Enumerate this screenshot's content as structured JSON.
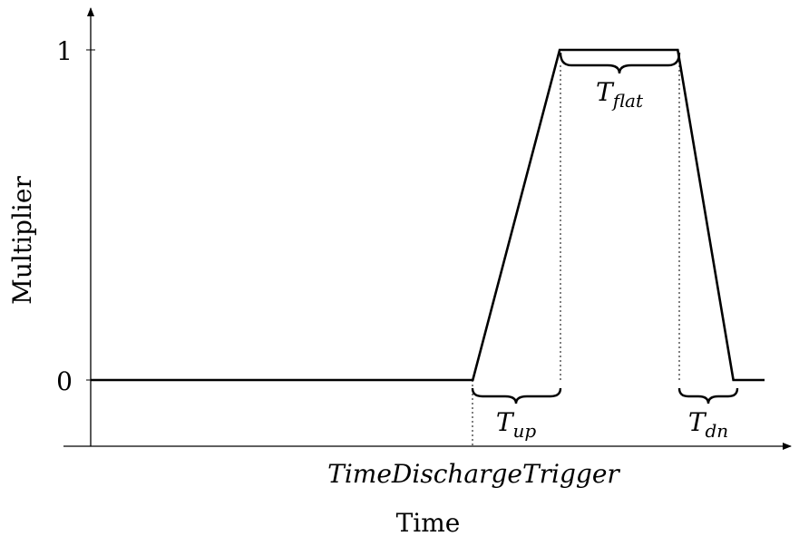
{
  "chart_data": {
    "type": "line",
    "xlabel": "Time",
    "ylabel": "Multiplier",
    "yticks": [
      "0",
      "1"
    ],
    "ylim": [
      -0.2,
      1.12
    ],
    "grid": false,
    "series": [
      {
        "x": [
          0,
          0.55,
          0.675,
          0.845,
          0.925,
          0.97
        ],
        "y": [
          0,
          0,
          1,
          1,
          0,
          0
        ]
      }
    ],
    "x_marker_label": "TimeDischargeTrigger",
    "annotations": {
      "t_up": {
        "main": "T",
        "sub": "up"
      },
      "t_flat": {
        "main": "T",
        "sub": "flat"
      },
      "t_dn": {
        "main": "T",
        "sub": "dn"
      }
    }
  },
  "colors": {
    "line": "#000000",
    "axis": "#000000",
    "background": "#ffffff"
  }
}
